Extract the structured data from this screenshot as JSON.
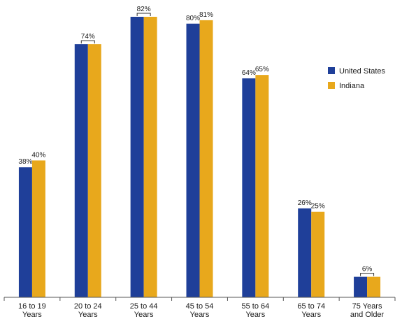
{
  "chart_data": {
    "type": "bar",
    "categories": [
      [
        "16 to 19",
        "Years"
      ],
      [
        "20 to 24",
        "Years"
      ],
      [
        "25 to 44",
        "Years"
      ],
      [
        "45 to 54",
        "Years"
      ],
      [
        "55 to 64",
        "Years"
      ],
      [
        "65 to 74",
        "Years"
      ],
      [
        "75 Years",
        "and Older"
      ]
    ],
    "series": [
      {
        "name": "United States",
        "color": "#1f3f99",
        "values": [
          38,
          74,
          82,
          80,
          64,
          26,
          6
        ]
      },
      {
        "name": "Indiana",
        "color": "#e8a81c",
        "values": [
          40,
          74,
          82,
          81,
          65,
          25,
          6
        ]
      }
    ],
    "data_labels": [
      {
        "category": 0,
        "mode": "pair",
        "texts": [
          "38%",
          "40%"
        ]
      },
      {
        "category": 1,
        "mode": "shared",
        "texts": [
          "74%"
        ]
      },
      {
        "category": 2,
        "mode": "shared",
        "texts": [
          "82%"
        ]
      },
      {
        "category": 3,
        "mode": "pair",
        "texts": [
          "80%",
          "81%"
        ]
      },
      {
        "category": 4,
        "mode": "pair",
        "texts": [
          "64%",
          "65%"
        ]
      },
      {
        "category": 5,
        "mode": "pair",
        "texts": [
          "26%",
          "25%"
        ]
      },
      {
        "category": 6,
        "mode": "shared",
        "texts": [
          "6%"
        ]
      }
    ],
    "ylim": [
      0,
      82
    ],
    "grid": false,
    "legend_position": "top-right",
    "title": "",
    "xlabel": "",
    "ylabel": ""
  }
}
